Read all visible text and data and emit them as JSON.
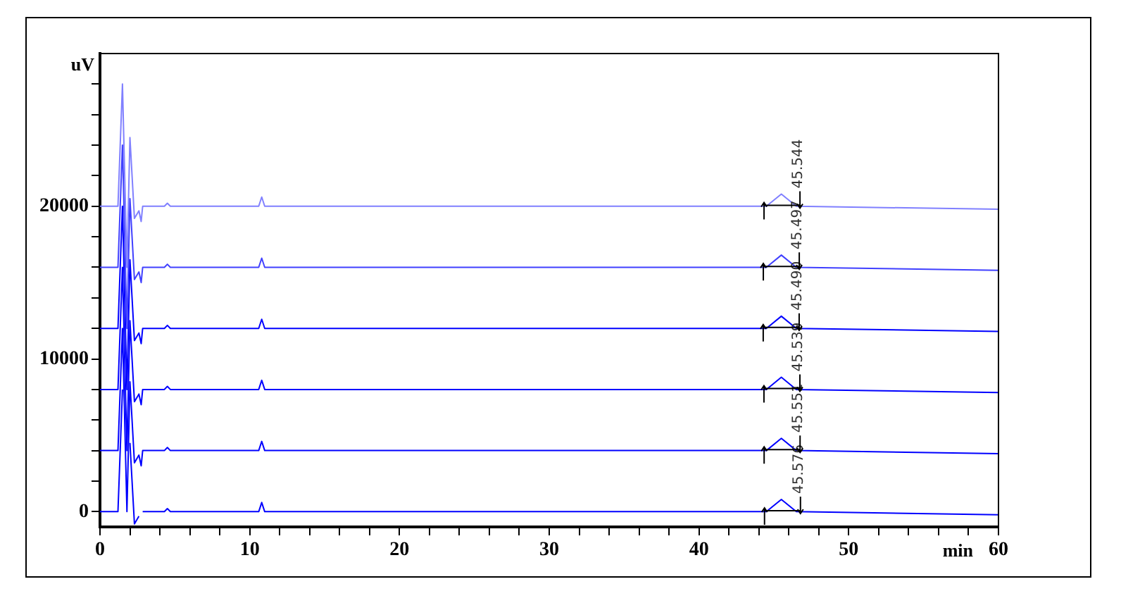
{
  "chart_data": {
    "type": "line",
    "xlabel": "min",
    "ylabel": "uV",
    "x": [
      0,
      1.2,
      1.5,
      1.8,
      2.0,
      2.3,
      2.6,
      2.75,
      2.85,
      4.3,
      4.5,
      4.7,
      10.6,
      10.8,
      11.0,
      44.5,
      45.5,
      46.5,
      60
    ],
    "series": [
      {
        "color": "#0000ff",
        "values": [
          0,
          0,
          8000,
          null,
          4500,
          -800,
          -300,
          null,
          0,
          0,
          200,
          0,
          0,
          600,
          0,
          0,
          800,
          0,
          -200
        ]
      },
      {
        "color": "#0000ff",
        "values": [
          4000,
          4000,
          12000,
          0,
          8500,
          3200,
          3700,
          3000,
          4000,
          4000,
          4200,
          4000,
          4000,
          4600,
          4000,
          4000,
          4800,
          4000,
          3800
        ]
      },
      {
        "color": "#0000ff",
        "values": [
          8000,
          8000,
          16000,
          4000,
          12500,
          7200,
          7700,
          7000,
          8000,
          8000,
          8200,
          8000,
          8000,
          8600,
          8000,
          8000,
          8800,
          8000,
          7800
        ]
      },
      {
        "color": "#0000ff",
        "values": [
          12000,
          12000,
          20000,
          8000,
          16500,
          11200,
          11700,
          11000,
          12000,
          12000,
          12200,
          12000,
          12000,
          12600,
          12000,
          12000,
          12800,
          12000,
          11800
        ]
      },
      {
        "color": "#4040ff",
        "values": [
          16000,
          16000,
          24000,
          12000,
          20500,
          15200,
          15700,
          15000,
          16000,
          16000,
          16200,
          16000,
          16000,
          16600,
          16000,
          16000,
          16800,
          16000,
          15800
        ]
      },
      {
        "color": "#8080ff",
        "values": [
          20000,
          20000,
          28000,
          16000,
          24500,
          19200,
          19700,
          19000,
          20000,
          20000,
          20200,
          20000,
          20000,
          20600,
          20000,
          20000,
          20800,
          20000,
          19800
        ]
      }
    ],
    "annotations": [
      {
        "text": "45.576",
        "x": 45.576,
        "y": 800
      },
      {
        "text": "45.551",
        "x": 45.551,
        "y": 4800
      },
      {
        "text": "45.539",
        "x": 45.539,
        "y": 8800
      },
      {
        "text": "45.490",
        "x": 45.49,
        "y": 12800
      },
      {
        "text": "45.497",
        "x": 45.497,
        "y": 16800
      },
      {
        "text": "45.544",
        "x": 45.544,
        "y": 20800
      }
    ],
    "xlim": [
      0,
      60
    ],
    "xticks": [
      0,
      {
        "value": 2,
        "label": null
      },
      {
        "value": 4,
        "label": null
      },
      {
        "value": 6,
        "label": null
      },
      {
        "value": 8,
        "label": null
      },
      10,
      {
        "value": 12,
        "label": null
      },
      {
        "value": 14,
        "label": null
      },
      {
        "value": 16,
        "label": null
      },
      {
        "value": 18,
        "label": null
      },
      20,
      {
        "value": 22,
        "label": null
      },
      {
        "value": 24,
        "label": null
      },
      {
        "value": 26,
        "label": null
      },
      {
        "value": 28,
        "label": null
      },
      30,
      {
        "value": 32,
        "label": null
      },
      {
        "value": 34,
        "label": null
      },
      {
        "value": 36,
        "label": null
      },
      {
        "value": 38,
        "label": null
      },
      40,
      {
        "value": 42,
        "label": null
      },
      {
        "value": 44,
        "label": null
      },
      {
        "value": 46,
        "label": null
      },
      {
        "value": 48,
        "label": null
      },
      50,
      {
        "value": 52,
        "label": null
      },
      {
        "value": 54,
        "label": null
      },
      {
        "value": 56,
        "label": null
      },
      {
        "value": 58,
        "label": null
      },
      60
    ],
    "ylim": [
      -1000,
      30000
    ],
    "yticks": [
      0,
      {
        "value": 2000,
        "label": null
      },
      {
        "value": 4000,
        "label": null
      },
      {
        "value": 6000,
        "label": null
      },
      {
        "value": 8000,
        "label": null
      },
      10000,
      {
        "value": 12000,
        "label": null
      },
      {
        "value": 14000,
        "label": null
      },
      {
        "value": 16000,
        "label": null
      },
      {
        "value": 18000,
        "label": null
      },
      20000,
      {
        "value": 22000,
        "label": null
      },
      {
        "value": 24000,
        "label": null
      },
      {
        "value": 26000,
        "label": null
      },
      {
        "value": 28000,
        "label": null
      }
    ],
    "grid": false,
    "legend": false,
    "marker": "none",
    "line_style": "solid"
  }
}
